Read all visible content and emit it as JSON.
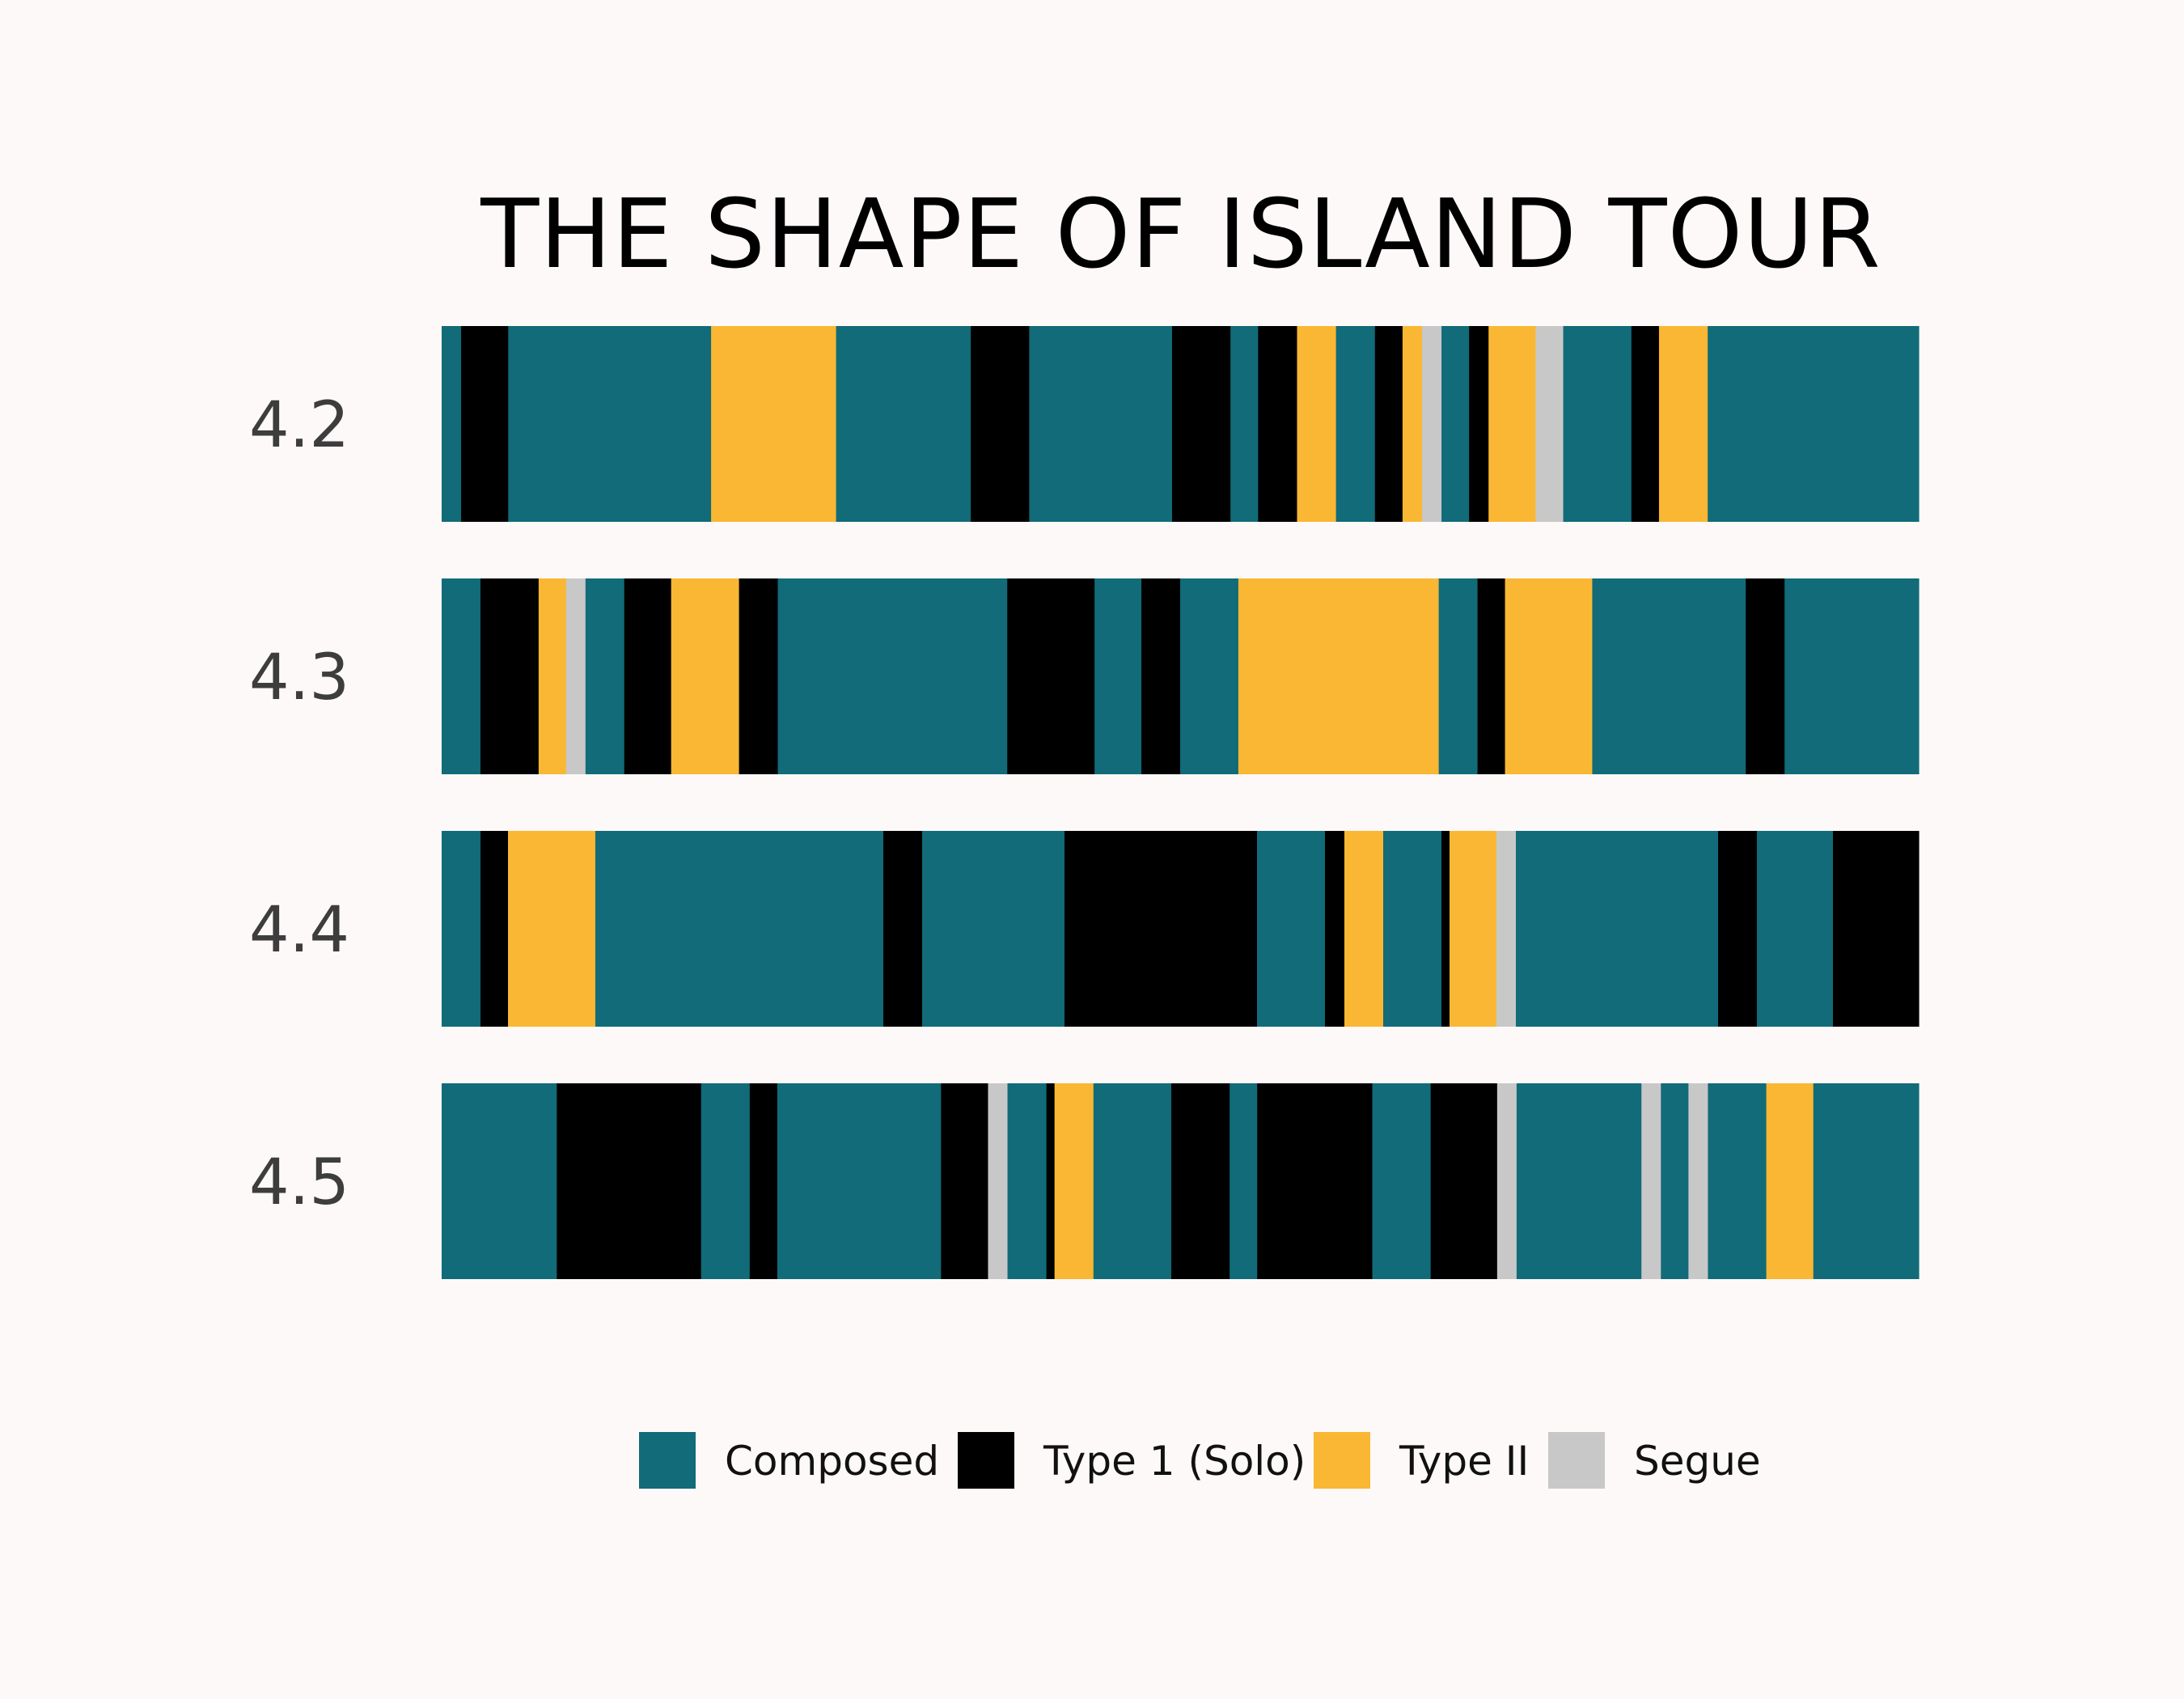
{
  "chart_data": {
    "type": "bar",
    "subtype": "stacked-horizontal-segments",
    "title": "THE SHAPE OF ISLAND TOUR",
    "xlabel": "",
    "ylabel": "",
    "legend_position": "bottom",
    "grid": false,
    "categories": [
      {
        "code": "C",
        "name": "Composed",
        "color": "#116b79"
      },
      {
        "code": "T1",
        "name": "Type 1 (Solo)",
        "color": "#000000"
      },
      {
        "code": "T2",
        "name": "Type II",
        "color": "#f9b733"
      },
      {
        "code": "S",
        "name": "Segue",
        "color": "#c8c8c8"
      }
    ],
    "rows": [
      {
        "label": "4.2",
        "segments": [
          [
            "C",
            24
          ],
          [
            "T1",
            58
          ],
          [
            "C",
            250
          ],
          [
            "T2",
            154
          ],
          [
            "C",
            166
          ],
          [
            "T1",
            72
          ],
          [
            "C",
            176
          ],
          [
            "T1",
            72
          ],
          [
            "C",
            34
          ],
          [
            "T1",
            48
          ],
          [
            "T2",
            48
          ],
          [
            "C",
            48
          ],
          [
            "T1",
            34
          ],
          [
            "T2",
            24
          ],
          [
            "S",
            24
          ],
          [
            "C",
            34
          ],
          [
            "T1",
            24
          ],
          [
            "T2",
            58
          ],
          [
            "S",
            34
          ],
          [
            "C",
            84
          ],
          [
            "T1",
            34
          ],
          [
            "T2",
            60
          ],
          [
            "C",
            260
          ]
        ]
      },
      {
        "label": "4.3",
        "segments": [
          [
            "C",
            48
          ],
          [
            "T1",
            72
          ],
          [
            "T2",
            34
          ],
          [
            "S",
            24
          ],
          [
            "C",
            48
          ],
          [
            "T1",
            58
          ],
          [
            "T2",
            84
          ],
          [
            "T1",
            48
          ],
          [
            "C",
            284
          ],
          [
            "T1",
            108
          ],
          [
            "C",
            58
          ],
          [
            "T1",
            48
          ],
          [
            "C",
            72
          ],
          [
            "T2",
            248
          ],
          [
            "C",
            48
          ],
          [
            "T1",
            34
          ],
          [
            "T2",
            108
          ],
          [
            "C",
            190
          ],
          [
            "T1",
            48
          ],
          [
            "C",
            166
          ]
        ]
      },
      {
        "label": "4.4",
        "segments": [
          [
            "C",
            48
          ],
          [
            "T1",
            34
          ],
          [
            "T2",
            108
          ],
          [
            "C",
            356
          ],
          [
            "T1",
            48
          ],
          [
            "C",
            176
          ],
          [
            "T1",
            238
          ],
          [
            "C",
            84
          ],
          [
            "T1",
            24
          ],
          [
            "T2",
            48
          ],
          [
            "C",
            72
          ],
          [
            "T1",
            10
          ],
          [
            "T2",
            58
          ],
          [
            "S",
            24
          ],
          [
            "C",
            250
          ],
          [
            "T1",
            48
          ],
          [
            "C",
            94
          ],
          [
            "T1",
            106
          ]
        ]
      },
      {
        "label": "4.5",
        "segments": [
          [
            "C",
            142
          ],
          [
            "T1",
            178
          ],
          [
            "C",
            60
          ],
          [
            "T1",
            34
          ],
          [
            "T2",
            0
          ],
          [
            "C",
            202
          ],
          [
            "T1",
            58
          ],
          [
            "S",
            24
          ],
          [
            "C",
            48
          ],
          [
            "T1",
            10
          ],
          [
            "T2",
            48
          ],
          [
            "C",
            96
          ],
          [
            "T1",
            72
          ],
          [
            "C",
            34
          ],
          [
            "T1",
            142
          ],
          [
            "C",
            72
          ],
          [
            "T1",
            82
          ],
          [
            "S",
            24
          ],
          [
            "C",
            154
          ],
          [
            "S",
            24
          ],
          [
            "C",
            34
          ],
          [
            "S",
            24
          ],
          [
            "C",
            72
          ],
          [
            "T2",
            58
          ],
          [
            "C",
            130
          ]
        ]
      }
    ],
    "scale_total": 1826
  }
}
